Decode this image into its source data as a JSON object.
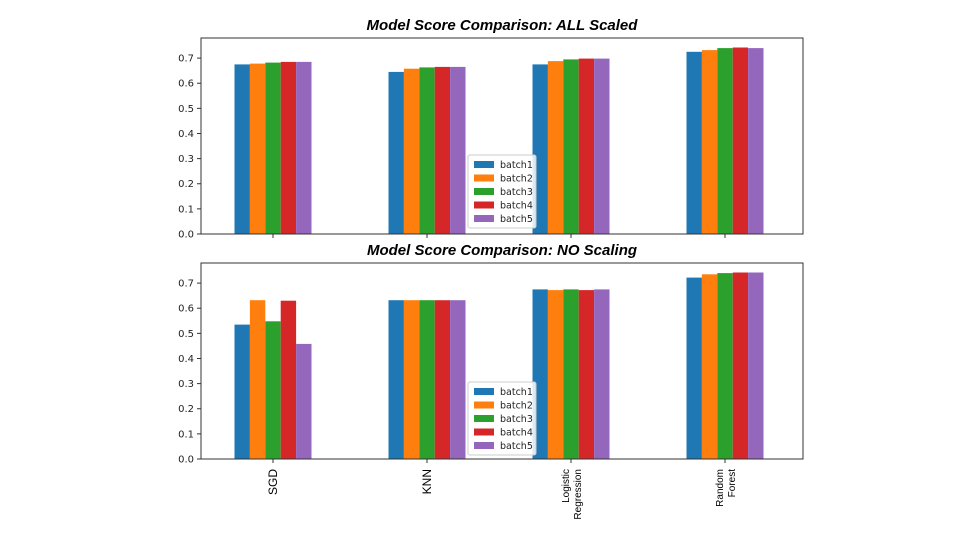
{
  "chart_data": [
    {
      "type": "bar",
      "title": "Model Score Comparison: ALL Scaled",
      "xlabel": "",
      "ylabel": "",
      "categories": [
        "SGD",
        "KNN",
        "Logistic Regression",
        "Random Forest"
      ],
      "category_labels_visible": false,
      "ylim": [
        0,
        0.78
      ],
      "yticks": [
        "0.0",
        "0.1",
        "0.2",
        "0.3",
        "0.4",
        "0.5",
        "0.6",
        "0.7"
      ],
      "grid": false,
      "legend": "lower-center",
      "series": [
        {
          "name": "batch1",
          "color": "#1f77b4",
          "values": [
            0.675,
            0.645,
            0.675,
            0.725
          ]
        },
        {
          "name": "batch2",
          "color": "#ff7f0e",
          "values": [
            0.678,
            0.658,
            0.688,
            0.732
          ]
        },
        {
          "name": "batch3",
          "color": "#2ca02c",
          "values": [
            0.682,
            0.663,
            0.695,
            0.74
          ]
        },
        {
          "name": "batch4",
          "color": "#d62728",
          "values": [
            0.685,
            0.665,
            0.698,
            0.742
          ]
        },
        {
          "name": "batch5",
          "color": "#9467bd",
          "values": [
            0.685,
            0.665,
            0.698,
            0.74
          ]
        }
      ]
    },
    {
      "type": "bar",
      "title": "Model Score Comparison: NO Scaling",
      "xlabel": "",
      "ylabel": "",
      "categories": [
        "SGD",
        "KNN",
        "Logistic Regression",
        "Random Forest"
      ],
      "category_labels_visible": true,
      "ylim": [
        0,
        0.78
      ],
      "yticks": [
        "0.0",
        "0.1",
        "0.2",
        "0.3",
        "0.4",
        "0.5",
        "0.6",
        "0.7"
      ],
      "grid": false,
      "legend": "lower-center",
      "series": [
        {
          "name": "batch1",
          "color": "#1f77b4",
          "values": [
            0.535,
            0.632,
            0.675,
            0.722
          ]
        },
        {
          "name": "batch2",
          "color": "#ff7f0e",
          "values": [
            0.632,
            0.632,
            0.672,
            0.735
          ]
        },
        {
          "name": "batch3",
          "color": "#2ca02c",
          "values": [
            0.548,
            0.632,
            0.675,
            0.74
          ]
        },
        {
          "name": "batch4",
          "color": "#d62728",
          "values": [
            0.63,
            0.632,
            0.672,
            0.742
          ]
        },
        {
          "name": "batch5",
          "color": "#9467bd",
          "values": [
            0.458,
            0.632,
            0.675,
            0.742
          ]
        }
      ]
    }
  ]
}
